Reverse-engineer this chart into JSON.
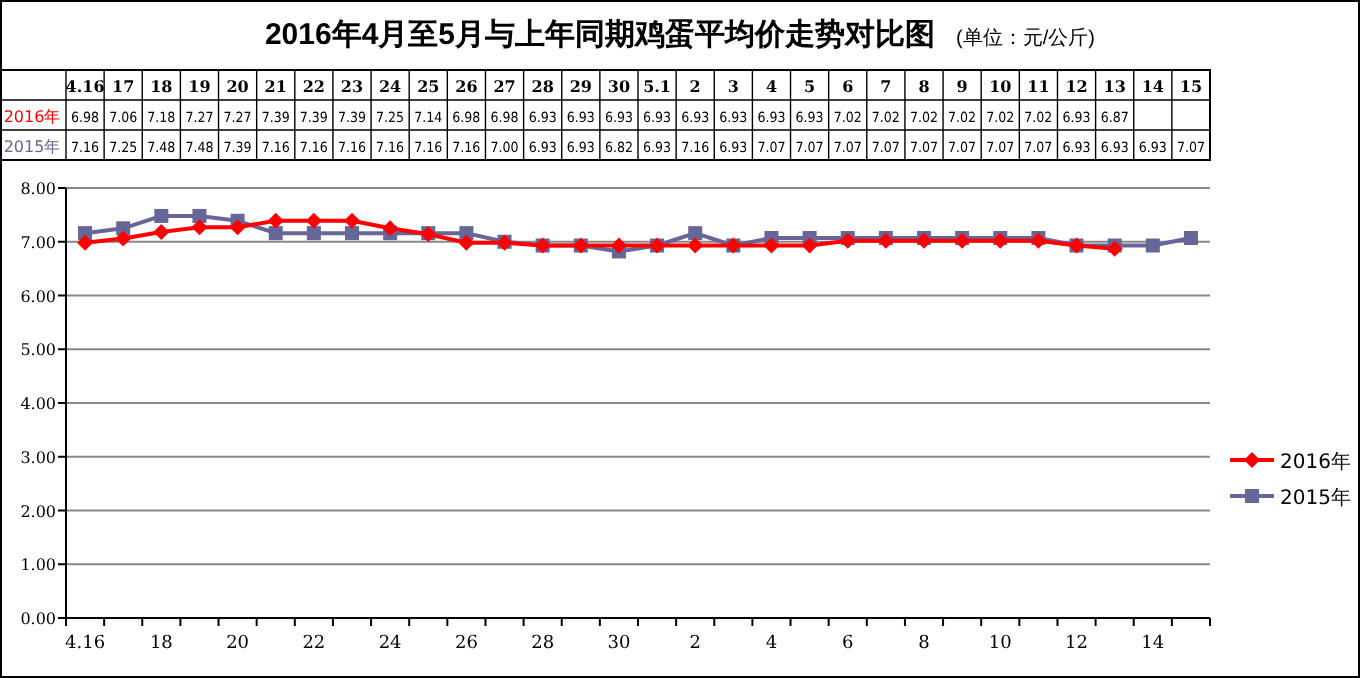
{
  "chart_data": {
    "type": "line",
    "title": "2016年4月至5月与上年同期鸡蛋平均价走势对比图",
    "subtitle": "(单位：元/公斤)",
    "categories": [
      "4.16",
      "17",
      "18",
      "19",
      "20",
      "21",
      "22",
      "23",
      "24",
      "25",
      "26",
      "27",
      "28",
      "29",
      "30",
      "5.1",
      "2",
      "3",
      "4",
      "5",
      "6",
      "7",
      "8",
      "9",
      "10",
      "11",
      "12",
      "13",
      "14",
      "15"
    ],
    "series": [
      {
        "name": "2016年",
        "color": "#ff0000",
        "marker": "diamond",
        "values": [
          6.98,
          7.06,
          7.18,
          7.27,
          7.27,
          7.39,
          7.39,
          7.39,
          7.25,
          7.14,
          6.98,
          6.98,
          6.93,
          6.93,
          6.93,
          6.93,
          6.93,
          6.93,
          6.93,
          6.93,
          7.02,
          7.02,
          7.02,
          7.02,
          7.02,
          7.02,
          6.93,
          6.87,
          null,
          null
        ],
        "value_labels": [
          "6.98",
          "7.06",
          "7.18",
          "7.27",
          "7.27",
          "7.39",
          "7.39",
          "7.39",
          "7.25",
          "7.14",
          "6.98",
          "6.98",
          "6.93",
          "6.93",
          "6.93",
          "6.93",
          "6.93",
          "6.93",
          "6.93",
          "6.93",
          "7.02",
          "7.02",
          "7.02",
          "7.02",
          "7.02",
          "7.02",
          "6.93",
          "6.87",
          null,
          null
        ]
      },
      {
        "name": "2015年",
        "color": "#666699",
        "marker": "square",
        "values": [
          7.16,
          7.25,
          7.48,
          7.48,
          7.39,
          7.16,
          7.16,
          7.16,
          7.16,
          7.16,
          7.16,
          7.0,
          6.93,
          6.93,
          6.82,
          6.93,
          7.16,
          6.93,
          7.07,
          7.07,
          7.07,
          7.07,
          7.07,
          7.07,
          7.07,
          7.07,
          6.93,
          6.93,
          6.93,
          7.07
        ],
        "value_labels": [
          "7.16",
          "7.25",
          "7.48",
          "7.48",
          "7.39",
          "7.16",
          "7.16",
          "7.16",
          "7.16",
          "7.16",
          "7.16",
          "7.00",
          "6.93",
          "6.93",
          "6.82",
          "6.93",
          "7.16",
          "6.93",
          "7.07",
          "7.07",
          "7.07",
          "7.07",
          "7.07",
          "7.07",
          "7.07",
          "7.07",
          "6.93",
          "6.93",
          "6.93",
          "7.07"
        ]
      }
    ],
    "ylim": [
      0,
      8
    ],
    "yticks": [
      {
        "value": 0,
        "label": "0.00"
      },
      {
        "value": 1,
        "label": "1.00"
      },
      {
        "value": 2,
        "label": "2.00"
      },
      {
        "value": 3,
        "label": "3.00"
      },
      {
        "value": 4,
        "label": "4.00"
      },
      {
        "value": 5,
        "label": "5.00"
      },
      {
        "value": 6,
        "label": "6.00"
      },
      {
        "value": 7,
        "label": "7.00"
      },
      {
        "value": 8,
        "label": "8.00"
      }
    ],
    "grid": "y",
    "legend": "right",
    "line_style": "solid"
  }
}
